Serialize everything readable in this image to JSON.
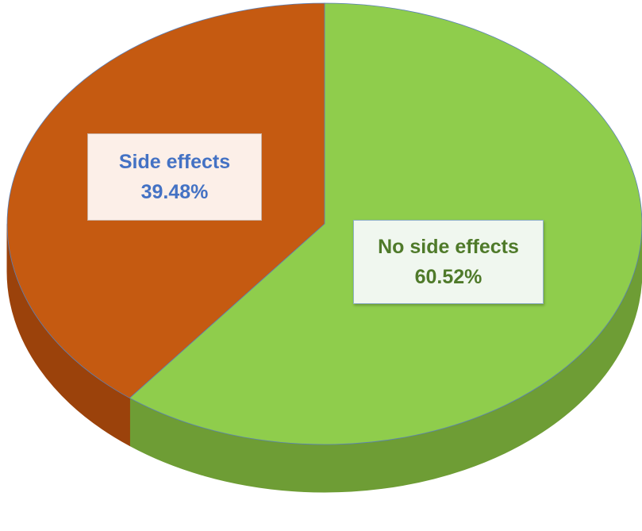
{
  "chart_data": {
    "type": "pie",
    "title": "",
    "series": [
      {
        "slices": [
          {
            "label": "No side effects",
            "value": 60.52,
            "display": "60.52%",
            "color": "#8fcd4c",
            "side_color": "#6e9d35",
            "label_color": "#4f7a2a"
          },
          {
            "label": "Side effects",
            "value": 39.48,
            "display": "39.48%",
            "color": "#c55a11",
            "side_color": "#9b420b",
            "label_color": "#4472c4"
          }
        ]
      }
    ],
    "style": "3d"
  }
}
